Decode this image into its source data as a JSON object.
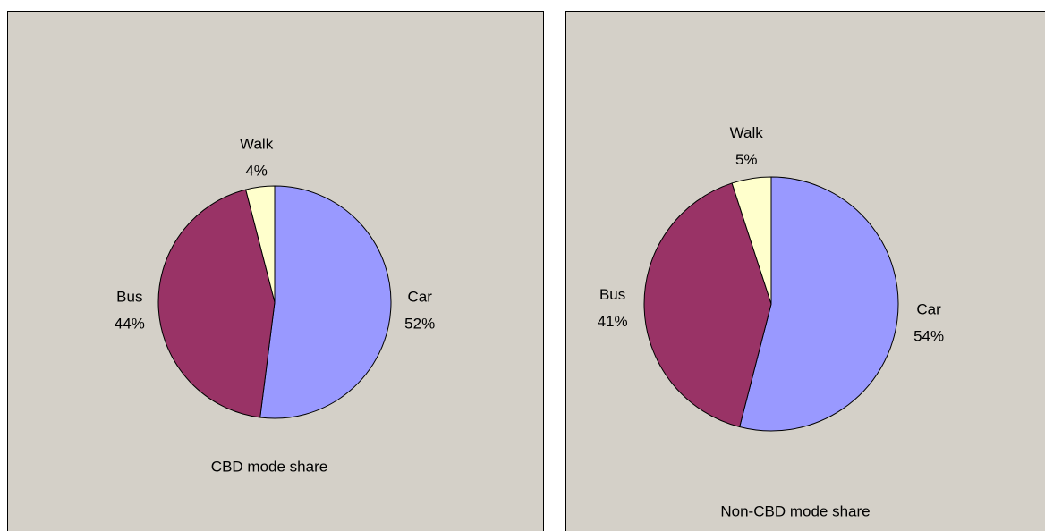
{
  "chart_data": [
    {
      "type": "pie",
      "title": "CBD mode share",
      "categories": [
        "Car",
        "Bus",
        "Walk"
      ],
      "values": [
        52,
        44,
        4
      ],
      "value_labels": [
        "52%",
        "44%",
        "4%"
      ],
      "colors": [
        "#9999ff",
        "#993366",
        "#ffffcc"
      ]
    },
    {
      "type": "pie",
      "title": "Non-CBD mode share",
      "categories": [
        "Car",
        "Bus",
        "Walk"
      ],
      "values": [
        54,
        41,
        5
      ],
      "value_labels": [
        "54%",
        "41%",
        "5%"
      ],
      "colors": [
        "#9999ff",
        "#993366",
        "#ffffcc"
      ]
    }
  ]
}
